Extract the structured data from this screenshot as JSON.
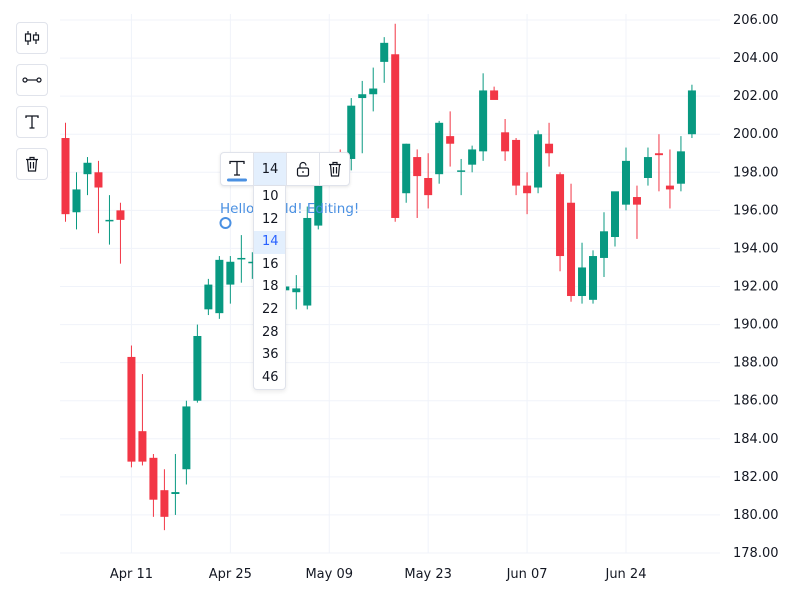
{
  "chart_data": {
    "type": "candlestick",
    "y_ticks": [
      "206.00",
      "204.00",
      "202.00",
      "200.00",
      "198.00",
      "196.00",
      "194.00",
      "192.00",
      "190.00",
      "188.00",
      "186.00",
      "184.00",
      "182.00",
      "180.00",
      "178.00"
    ],
    "ylim": [
      177.6,
      206.6
    ],
    "x_ticks": [
      "Apr 11",
      "Apr 25",
      "May 09",
      "May 23",
      "Jun 07",
      "Jun 24"
    ],
    "x_tick_index": [
      6,
      15,
      24,
      33,
      42,
      51
    ],
    "colors": {
      "up": "#089981",
      "down": "#f23645",
      "grid": "#f0f3fa",
      "axis_text": "#131722"
    },
    "candles": [
      [
        199.8,
        200.6,
        195.4,
        195.8
      ],
      [
        195.9,
        198.0,
        195.0,
        197.1
      ],
      [
        197.9,
        198.8,
        196.8,
        198.5
      ],
      [
        198.0,
        198.6,
        194.8,
        197.2
      ],
      [
        195.5,
        196.8,
        194.2,
        195.5
      ],
      [
        196.0,
        196.4,
        193.2,
        195.5
      ],
      [
        188.3,
        188.9,
        182.5,
        182.8
      ],
      [
        184.4,
        187.4,
        182.6,
        182.8
      ],
      [
        183.0,
        183.2,
        179.9,
        180.8
      ],
      [
        181.3,
        182.4,
        179.2,
        179.9
      ],
      [
        181.1,
        183.2,
        180.0,
        181.2
      ],
      [
        182.4,
        186.0,
        181.6,
        185.7
      ],
      [
        186.0,
        190.0,
        185.9,
        189.4
      ],
      [
        190.8,
        192.4,
        190.5,
        192.1
      ],
      [
        190.6,
        193.6,
        190.3,
        193.4
      ],
      [
        192.1,
        193.6,
        191.1,
        193.3
      ],
      [
        193.5,
        194.7,
        192.2,
        193.5
      ],
      [
        193.3,
        193.8,
        192.4,
        193.3
      ],
      [
        192.6,
        193.4,
        190.7,
        192.1
      ],
      [
        192.0,
        192.5,
        188.2,
        190.6
      ],
      [
        191.8,
        192.3,
        190.2,
        192.0
      ],
      [
        191.7,
        192.6,
        190.8,
        191.9
      ],
      [
        191.0,
        196.2,
        190.8,
        195.6
      ],
      [
        195.2,
        198.2,
        195.0,
        198.1
      ],
      [
        198.5,
        198.9,
        197.4,
        198.7
      ],
      [
        198.8,
        199.2,
        198.0,
        198.7
      ],
      [
        198.7,
        201.9,
        198.1,
        201.5
      ],
      [
        201.9,
        202.8,
        199.0,
        202.1
      ],
      [
        202.1,
        203.5,
        201.2,
        202.4
      ],
      [
        203.8,
        205.1,
        202.7,
        204.8
      ],
      [
        204.2,
        205.8,
        195.4,
        195.6
      ],
      [
        196.9,
        199.5,
        196.4,
        199.5
      ],
      [
        198.8,
        199.2,
        195.6,
        197.8
      ],
      [
        197.7,
        199.0,
        196.1,
        196.8
      ],
      [
        197.9,
        200.7,
        197.4,
        200.6
      ],
      [
        199.9,
        201.2,
        198.3,
        199.5
      ],
      [
        198.1,
        198.7,
        196.8,
        198.1
      ],
      [
        198.4,
        199.4,
        198.0,
        199.2
      ],
      [
        199.1,
        203.2,
        198.6,
        202.3
      ],
      [
        202.3,
        202.5,
        201.9,
        201.8
      ],
      [
        200.1,
        200.8,
        198.6,
        199.1
      ],
      [
        199.7,
        199.8,
        196.8,
        197.3
      ],
      [
        197.3,
        198.0,
        195.8,
        196.9
      ],
      [
        197.2,
        200.2,
        196.9,
        200.0
      ],
      [
        199.5,
        200.6,
        198.3,
        199.0
      ],
      [
        197.9,
        198.0,
        192.8,
        193.6
      ],
      [
        196.4,
        197.4,
        191.2,
        191.5
      ],
      [
        191.5,
        194.3,
        191.1,
        193.0
      ],
      [
        191.3,
        193.9,
        191.1,
        193.6
      ],
      [
        193.5,
        195.9,
        192.5,
        194.9
      ],
      [
        194.6,
        196.8,
        194.1,
        197.0
      ],
      [
        196.3,
        199.3,
        196.0,
        198.6
      ],
      [
        196.7,
        197.3,
        194.5,
        196.3
      ],
      [
        197.7,
        199.3,
        197.3,
        198.8
      ],
      [
        199.0,
        200.0,
        197.0,
        198.9
      ],
      [
        197.3,
        199.2,
        196.1,
        197.1
      ],
      [
        197.4,
        199.9,
        197.0,
        199.1
      ],
      [
        200.0,
        202.6,
        199.8,
        202.3
      ]
    ]
  },
  "toolbar_left": {
    "candle_tool_icon": "candlestick-icon",
    "line_tool_icon": "trend-line-icon",
    "text_tool_icon": "text-icon",
    "delete_tool_icon": "trash-icon"
  },
  "text_toolbar": {
    "color_icon": "text-color-icon",
    "color": "#4a90e2",
    "font_size": "14",
    "lock_icon": "unlock-icon",
    "delete_icon": "trash-icon"
  },
  "annotation": {
    "text": "Hello World! Editing!",
    "color": "#4a90e2"
  },
  "font_size_options": [
    "10",
    "12",
    "14",
    "16",
    "18",
    "22",
    "28",
    "36",
    "46"
  ],
  "font_size_selected": "14"
}
